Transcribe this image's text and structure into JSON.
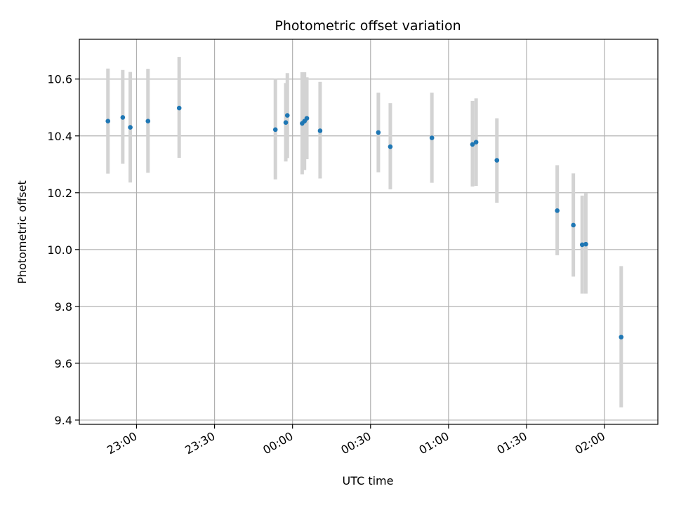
{
  "chart_data": {
    "type": "scatter",
    "title": "Photometric offset variation",
    "xlabel": "UTC time",
    "ylabel": "Photometric offset",
    "grid": true,
    "x_ticks": [
      {
        "label": "23:00",
        "minutes": -60
      },
      {
        "label": "23:30",
        "minutes": -30
      },
      {
        "label": "00:00",
        "minutes": 0
      },
      {
        "label": "00:30",
        "minutes": 30
      },
      {
        "label": "01:00",
        "minutes": 60
      },
      {
        "label": "01:30",
        "minutes": 90
      },
      {
        "label": "02:00",
        "minutes": 120
      }
    ],
    "y_ticks": [
      9.4,
      9.6,
      9.8,
      10.0,
      10.2,
      10.4,
      10.6
    ],
    "xlim_minutes": [
      -82,
      140.5
    ],
    "ylim": [
      9.385,
      10.74
    ],
    "colors": {
      "point": "#1f77b4",
      "errorbar": "#d3d3d3",
      "grid": "#b0b0b0"
    },
    "series": [
      {
        "points": [
          {
            "time": "22:49",
            "y": 10.452,
            "y_err_low": 10.267,
            "y_err_high": 10.637
          },
          {
            "time": "22:54.7",
            "y": 10.465,
            "y_err_low": 10.302,
            "y_err_high": 10.632
          },
          {
            "time": "22:57.6",
            "y": 10.43,
            "y_err_low": 10.236,
            "y_err_high": 10.625
          },
          {
            "time": "23:04.4",
            "y": 10.452,
            "y_err_low": 10.27,
            "y_err_high": 10.636
          },
          {
            "time": "23:16.4",
            "y": 10.498,
            "y_err_low": 10.323,
            "y_err_high": 10.678
          },
          {
            "time": "23:53.4",
            "y": 10.422,
            "y_err_low": 10.247,
            "y_err_high": 10.6
          },
          {
            "time": "23:57.4",
            "y": 10.447,
            "y_err_low": 10.31,
            "y_err_high": 10.586
          },
          {
            "time": "23:58.0",
            "y": 10.472,
            "y_err_low": 10.322,
            "y_err_high": 10.621
          },
          {
            "time": "00:03.7",
            "y": 10.444,
            "y_err_low": 10.265,
            "y_err_high": 10.624
          },
          {
            "time": "00:04.6",
            "y": 10.452,
            "y_err_low": 10.28,
            "y_err_high": 10.624
          },
          {
            "time": "00:05.5",
            "y": 10.462,
            "y_err_low": 10.318,
            "y_err_high": 10.606
          },
          {
            "time": "00:10.6",
            "y": 10.418,
            "y_err_low": 10.25,
            "y_err_high": 10.59
          },
          {
            "time": "00:33.0",
            "y": 10.412,
            "y_err_low": 10.272,
            "y_err_high": 10.552
          },
          {
            "time": "00:37.6",
            "y": 10.362,
            "y_err_low": 10.212,
            "y_err_high": 10.515
          },
          {
            "time": "00:53.6",
            "y": 10.393,
            "y_err_low": 10.235,
            "y_err_high": 10.552
          },
          {
            "time": "01:09.2",
            "y": 10.37,
            "y_err_low": 10.222,
            "y_err_high": 10.523
          },
          {
            "time": "01:10.6",
            "y": 10.378,
            "y_err_low": 10.224,
            "y_err_high": 10.532
          },
          {
            "time": "01:18.6",
            "y": 10.314,
            "y_err_low": 10.165,
            "y_err_high": 10.462
          },
          {
            "time": "01:41.8",
            "y": 10.137,
            "y_err_low": 9.98,
            "y_err_high": 10.297
          },
          {
            "time": "01:48.0",
            "y": 10.086,
            "y_err_low": 9.905,
            "y_err_high": 10.268
          },
          {
            "time": "01:51.4",
            "y": 10.017,
            "y_err_low": 9.845,
            "y_err_high": 10.19
          },
          {
            "time": "01:52.8",
            "y": 10.019,
            "y_err_low": 9.845,
            "y_err_high": 10.198
          },
          {
            "time": "02:06.4",
            "y": 9.692,
            "y_err_low": 9.445,
            "y_err_high": 9.942
          }
        ]
      }
    ]
  }
}
